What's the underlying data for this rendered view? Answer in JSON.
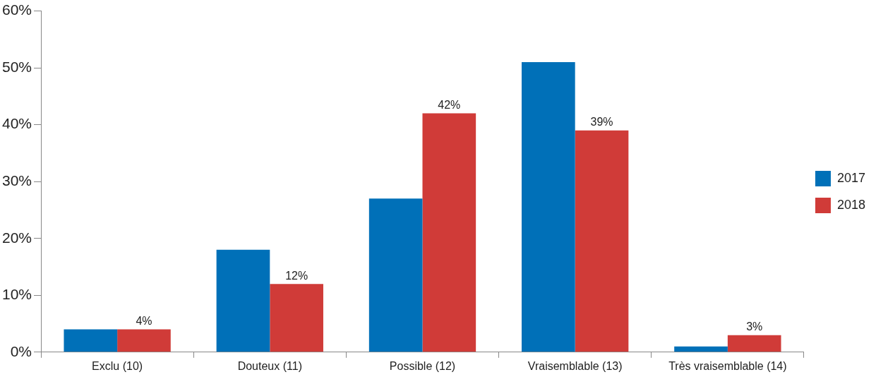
{
  "chart_data": {
    "type": "bar",
    "categories": [
      "Exclu (10)",
      "Douteux (11)",
      "Possible (12)",
      "Vraisemblable (13)",
      "Très vraisemblable (14)"
    ],
    "series": [
      {
        "name": "2017",
        "color": "#0070b8",
        "values": [
          4,
          18,
          27,
          51,
          1
        ]
      },
      {
        "name": "2018",
        "color": "#d03b38",
        "values": [
          4,
          12,
          42,
          39,
          3
        ],
        "value_labels": [
          "4%",
          "12%",
          "42%",
          "39%",
          "3%"
        ]
      }
    ],
    "ylim": [
      0,
      60
    ],
    "yticks": [
      {
        "value": 0,
        "label": "0%"
      },
      {
        "value": 10,
        "label": "10%"
      },
      {
        "value": 20,
        "label": "20%"
      },
      {
        "value": 30,
        "label": "30%"
      },
      {
        "value": 40,
        "label": "40%"
      },
      {
        "value": 50,
        "label": "50%"
      },
      {
        "value": 60,
        "label": "60%"
      }
    ],
    "grid": false,
    "legend": "right"
  }
}
